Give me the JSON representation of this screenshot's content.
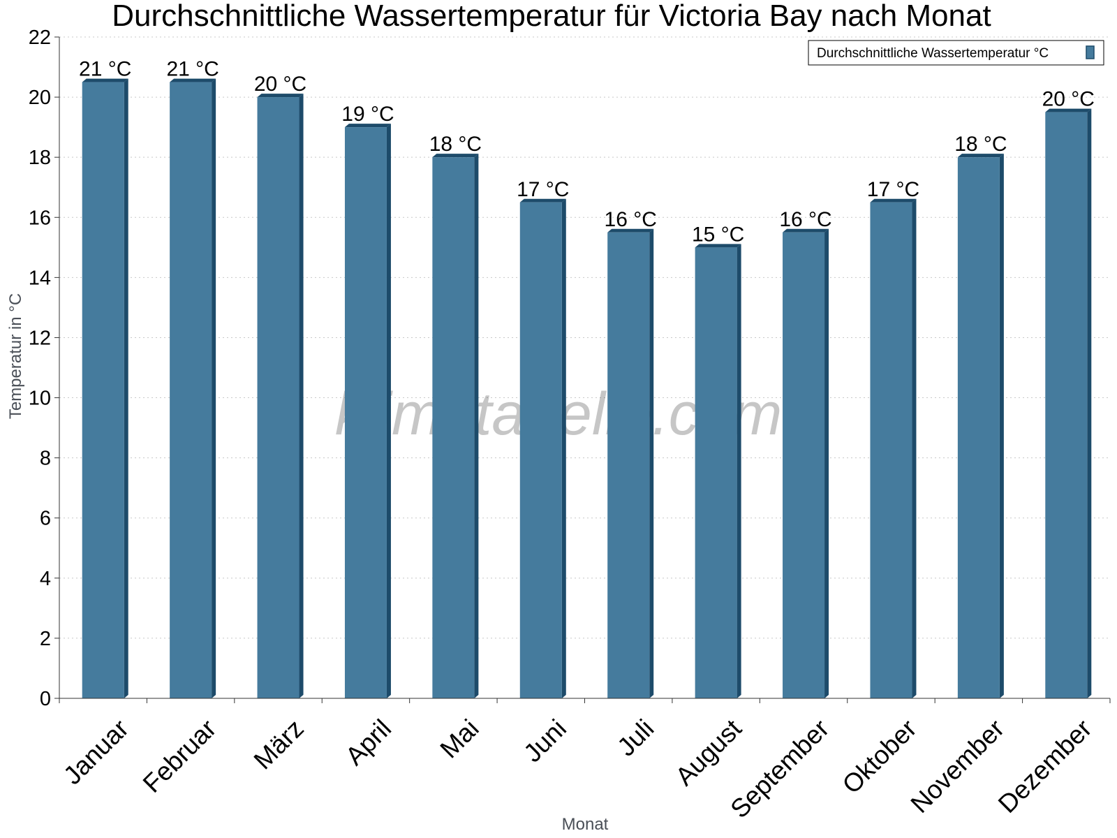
{
  "watermark": "klimatabelle.com",
  "colors": {
    "bar_face": "#457b9d",
    "bar_side": "#1d4b6a",
    "axis": "#333333",
    "grid": "#c8c8c8"
  },
  "chart_data": {
    "type": "bar",
    "title": "Durchschnittliche Wassertemperatur für Victoria Bay nach Monat",
    "xlabel": "Monat",
    "ylabel": "Temperatur in °C",
    "ylim": [
      0,
      22
    ],
    "yticks": [
      "0",
      "2",
      "4",
      "6",
      "8",
      "10",
      "12",
      "14",
      "16",
      "18",
      "20",
      "22"
    ],
    "grid": true,
    "legend_position": "top-right",
    "categories": [
      "Januar",
      "Februar",
      "März",
      "April",
      "Mai",
      "Juni",
      "Juli",
      "August",
      "September",
      "Oktober",
      "November",
      "Dezember"
    ],
    "series": [
      {
        "name": "Durchschnittliche Wassertemperatur °C",
        "values": [
          20.5,
          20.5,
          20,
          19,
          18,
          16.5,
          15.5,
          15,
          15.5,
          16.5,
          18,
          19.5
        ],
        "labels": [
          "21 °C",
          "21 °C",
          "20 °C",
          "19 °C",
          "18 °C",
          "17 °C",
          "16 °C",
          "15 °C",
          "16 °C",
          "17 °C",
          "18 °C",
          "20 °C"
        ]
      }
    ]
  }
}
